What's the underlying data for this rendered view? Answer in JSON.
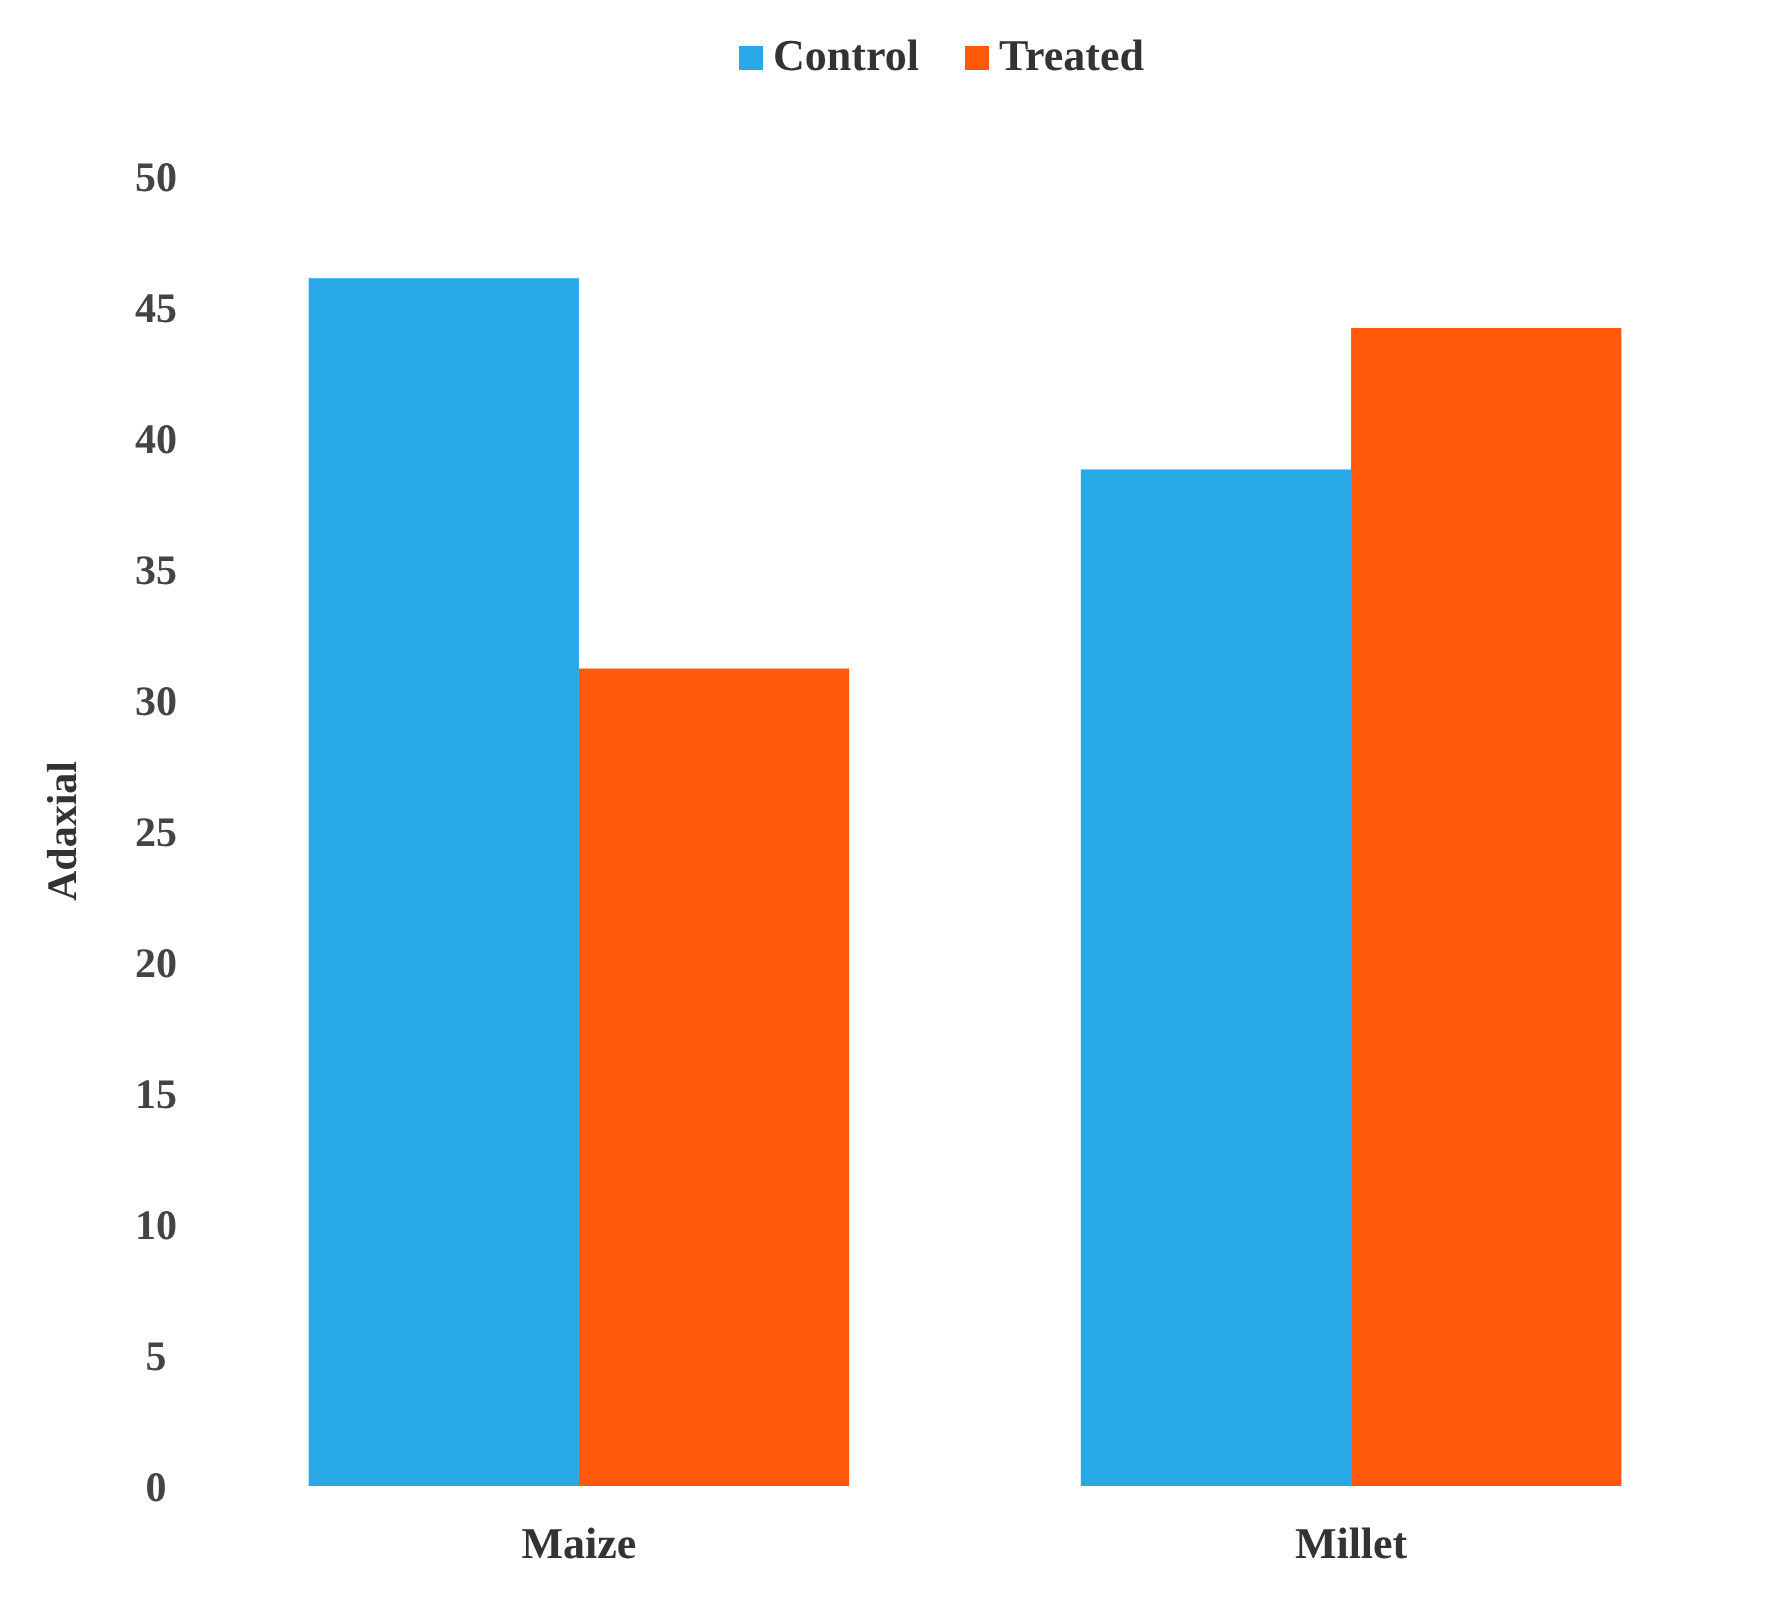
{
  "chart_data": {
    "type": "bar",
    "ylabel": "Adaxial",
    "categories": [
      "Maize",
      "Millet"
    ],
    "series": [
      {
        "name": "Control",
        "color": "#29a8e8",
        "values": [
          46.1,
          38.8
        ]
      },
      {
        "name": "Treated",
        "color": "#ff5a0a",
        "values": [
          31.2,
          44.2
        ]
      }
    ],
    "ylim": [
      0,
      50
    ],
    "yticks": [
      0,
      5,
      10,
      15,
      20,
      25,
      30,
      35,
      40,
      45,
      50
    ],
    "grid": false,
    "legend": "top"
  }
}
